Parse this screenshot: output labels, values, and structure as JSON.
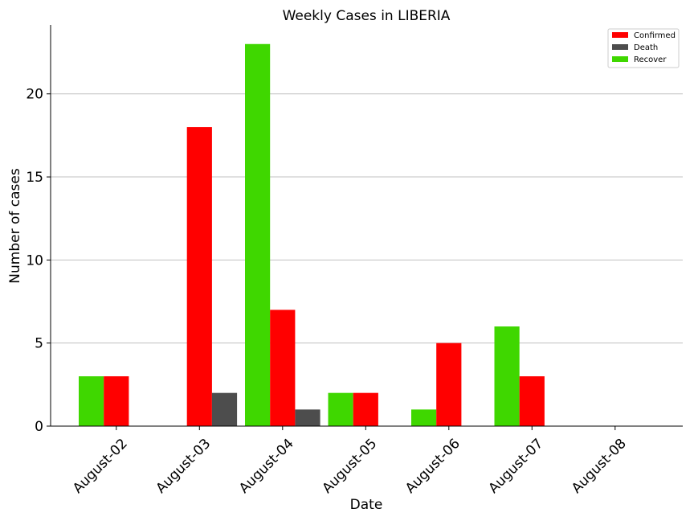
{
  "chart_data": {
    "type": "bar",
    "title": "Weekly Cases in LIBERIA",
    "xlabel": "Date",
    "ylabel": "Number of cases",
    "categories": [
      "August-02",
      "August-03",
      "August-04",
      "August-05",
      "August-06",
      "August-07",
      "August-08"
    ],
    "series": [
      {
        "name": "Confirmed",
        "color": "#ff0000",
        "values": [
          3,
          18,
          7,
          2,
          5,
          3,
          0
        ]
      },
      {
        "name": "Death",
        "color": "#4d4d4d",
        "values": [
          0,
          2,
          1,
          0,
          0,
          0,
          0
        ]
      },
      {
        "name": "Recover",
        "color": "#3fd700",
        "values": [
          3,
          0,
          23,
          2,
          1,
          6,
          0
        ]
      }
    ],
    "ylim": [
      0,
      24.15
    ],
    "yticks": [
      0,
      5,
      10,
      15,
      20
    ],
    "grid": "horizontal",
    "legend_position": "top-right"
  }
}
